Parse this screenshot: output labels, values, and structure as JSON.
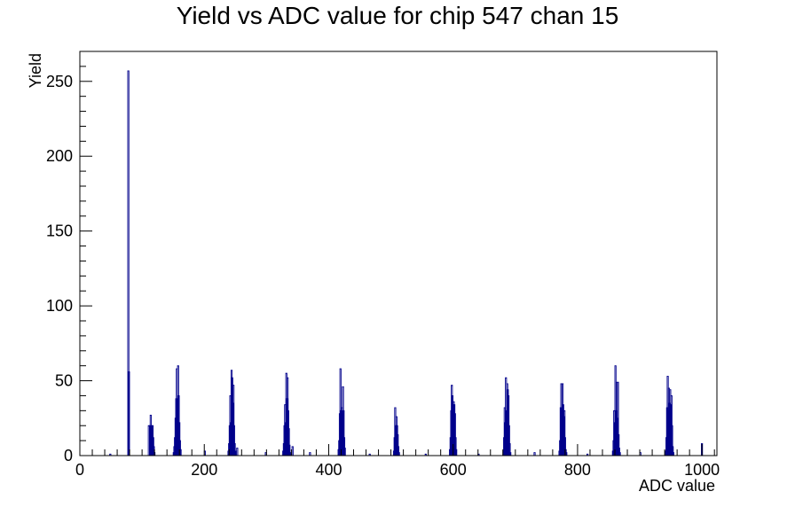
{
  "chart_data": {
    "type": "histogram",
    "title": "Yield vs ADC value for chip 547 chan 15",
    "xlabel": "ADC value",
    "ylabel": "Yield",
    "xlim": [
      0,
      1024
    ],
    "ylim": [
      0,
      270
    ],
    "x_ticks": [
      0,
      200,
      400,
      600,
      800,
      1000
    ],
    "x_tick_labels": [
      "0",
      "200",
      "400",
      "600",
      "800",
      "1000"
    ],
    "y_ticks": [
      0,
      50,
      100,
      150,
      200,
      250
    ],
    "y_tick_labels": [
      "0",
      "50",
      "100",
      "150",
      "200",
      "250"
    ],
    "grid": false,
    "legend": "none",
    "bar_color": "#00008b",
    "bins": [
      {
        "x": 48,
        "y": 1
      },
      {
        "x": 77,
        "y": 257
      },
      {
        "x": 78,
        "y": 56
      },
      {
        "x": 110,
        "y": 20
      },
      {
        "x": 112,
        "y": 20
      },
      {
        "x": 113,
        "y": 27
      },
      {
        "x": 114,
        "y": 15
      },
      {
        "x": 115,
        "y": 20
      },
      {
        "x": 116,
        "y": 20
      },
      {
        "x": 117,
        "y": 12
      },
      {
        "x": 118,
        "y": 6
      },
      {
        "x": 119,
        "y": 2
      },
      {
        "x": 150,
        "y": 2
      },
      {
        "x": 151,
        "y": 6
      },
      {
        "x": 152,
        "y": 12
      },
      {
        "x": 153,
        "y": 25
      },
      {
        "x": 154,
        "y": 38
      },
      {
        "x": 155,
        "y": 58
      },
      {
        "x": 156,
        "y": 35
      },
      {
        "x": 157,
        "y": 60
      },
      {
        "x": 158,
        "y": 40
      },
      {
        "x": 159,
        "y": 22
      },
      {
        "x": 160,
        "y": 10
      },
      {
        "x": 161,
        "y": 4
      },
      {
        "x": 200,
        "y": 3
      },
      {
        "x": 238,
        "y": 3
      },
      {
        "x": 239,
        "y": 8
      },
      {
        "x": 240,
        "y": 20
      },
      {
        "x": 241,
        "y": 40
      },
      {
        "x": 242,
        "y": 22
      },
      {
        "x": 243,
        "y": 57
      },
      {
        "x": 244,
        "y": 52
      },
      {
        "x": 245,
        "y": 35
      },
      {
        "x": 246,
        "y": 47
      },
      {
        "x": 247,
        "y": 20
      },
      {
        "x": 248,
        "y": 8
      },
      {
        "x": 249,
        "y": 3
      },
      {
        "x": 252,
        "y": 5
      },
      {
        "x": 298,
        "y": 2
      },
      {
        "x": 326,
        "y": 3
      },
      {
        "x": 327,
        "y": 8
      },
      {
        "x": 328,
        "y": 20
      },
      {
        "x": 329,
        "y": 34
      },
      {
        "x": 330,
        "y": 22
      },
      {
        "x": 331,
        "y": 55
      },
      {
        "x": 332,
        "y": 38
      },
      {
        "x": 333,
        "y": 52
      },
      {
        "x": 334,
        "y": 30
      },
      {
        "x": 335,
        "y": 18
      },
      {
        "x": 336,
        "y": 7
      },
      {
        "x": 337,
        "y": 2
      },
      {
        "x": 341,
        "y": 6
      },
      {
        "x": 369,
        "y": 2
      },
      {
        "x": 415,
        "y": 4
      },
      {
        "x": 416,
        "y": 10
      },
      {
        "x": 417,
        "y": 28
      },
      {
        "x": 418,
        "y": 58
      },
      {
        "x": 419,
        "y": 30
      },
      {
        "x": 420,
        "y": 32
      },
      {
        "x": 421,
        "y": 28
      },
      {
        "x": 422,
        "y": 46
      },
      {
        "x": 423,
        "y": 30
      },
      {
        "x": 424,
        "y": 12
      },
      {
        "x": 425,
        "y": 5
      },
      {
        "x": 465,
        "y": 1
      },
      {
        "x": 504,
        "y": 3
      },
      {
        "x": 505,
        "y": 12
      },
      {
        "x": 506,
        "y": 32
      },
      {
        "x": 507,
        "y": 20
      },
      {
        "x": 508,
        "y": 26
      },
      {
        "x": 509,
        "y": 20
      },
      {
        "x": 510,
        "y": 14
      },
      {
        "x": 511,
        "y": 6
      },
      {
        "x": 512,
        "y": 2
      },
      {
        "x": 555,
        "y": 1
      },
      {
        "x": 594,
        "y": 4
      },
      {
        "x": 595,
        "y": 12
      },
      {
        "x": 596,
        "y": 30
      },
      {
        "x": 597,
        "y": 47
      },
      {
        "x": 598,
        "y": 40
      },
      {
        "x": 599,
        "y": 34
      },
      {
        "x": 600,
        "y": 36
      },
      {
        "x": 601,
        "y": 34
      },
      {
        "x": 602,
        "y": 28
      },
      {
        "x": 603,
        "y": 12
      },
      {
        "x": 604,
        "y": 4
      },
      {
        "x": 640,
        "y": 1
      },
      {
        "x": 680,
        "y": 3
      },
      {
        "x": 681,
        "y": 12
      },
      {
        "x": 682,
        "y": 32
      },
      {
        "x": 683,
        "y": 22
      },
      {
        "x": 684,
        "y": 52
      },
      {
        "x": 685,
        "y": 30
      },
      {
        "x": 686,
        "y": 48
      },
      {
        "x": 687,
        "y": 44
      },
      {
        "x": 688,
        "y": 40
      },
      {
        "x": 689,
        "y": 20
      },
      {
        "x": 690,
        "y": 8
      },
      {
        "x": 691,
        "y": 2
      },
      {
        "x": 730,
        "y": 2
      },
      {
        "x": 770,
        "y": 3
      },
      {
        "x": 771,
        "y": 10
      },
      {
        "x": 772,
        "y": 32
      },
      {
        "x": 773,
        "y": 48
      },
      {
        "x": 774,
        "y": 30
      },
      {
        "x": 775,
        "y": 48
      },
      {
        "x": 776,
        "y": 34
      },
      {
        "x": 777,
        "y": 26
      },
      {
        "x": 778,
        "y": 30
      },
      {
        "x": 779,
        "y": 12
      },
      {
        "x": 780,
        "y": 4
      },
      {
        "x": 781,
        "y": 2
      },
      {
        "x": 815,
        "y": 1
      },
      {
        "x": 856,
        "y": 3
      },
      {
        "x": 857,
        "y": 10
      },
      {
        "x": 858,
        "y": 30
      },
      {
        "x": 859,
        "y": 22
      },
      {
        "x": 860,
        "y": 60
      },
      {
        "x": 861,
        "y": 30
      },
      {
        "x": 862,
        "y": 49
      },
      {
        "x": 863,
        "y": 25
      },
      {
        "x": 864,
        "y": 49
      },
      {
        "x": 865,
        "y": 14
      },
      {
        "x": 866,
        "y": 5
      },
      {
        "x": 867,
        "y": 2
      },
      {
        "x": 900,
        "y": 2
      },
      {
        "x": 941,
        "y": 3
      },
      {
        "x": 942,
        "y": 12
      },
      {
        "x": 943,
        "y": 32
      },
      {
        "x": 944,
        "y": 53
      },
      {
        "x": 945,
        "y": 30
      },
      {
        "x": 946,
        "y": 45
      },
      {
        "x": 947,
        "y": 35
      },
      {
        "x": 948,
        "y": 44
      },
      {
        "x": 949,
        "y": 34
      },
      {
        "x": 950,
        "y": 40
      },
      {
        "x": 951,
        "y": 20
      },
      {
        "x": 952,
        "y": 6
      },
      {
        "x": 953,
        "y": 2
      },
      {
        "x": 999,
        "y": 8
      }
    ]
  }
}
